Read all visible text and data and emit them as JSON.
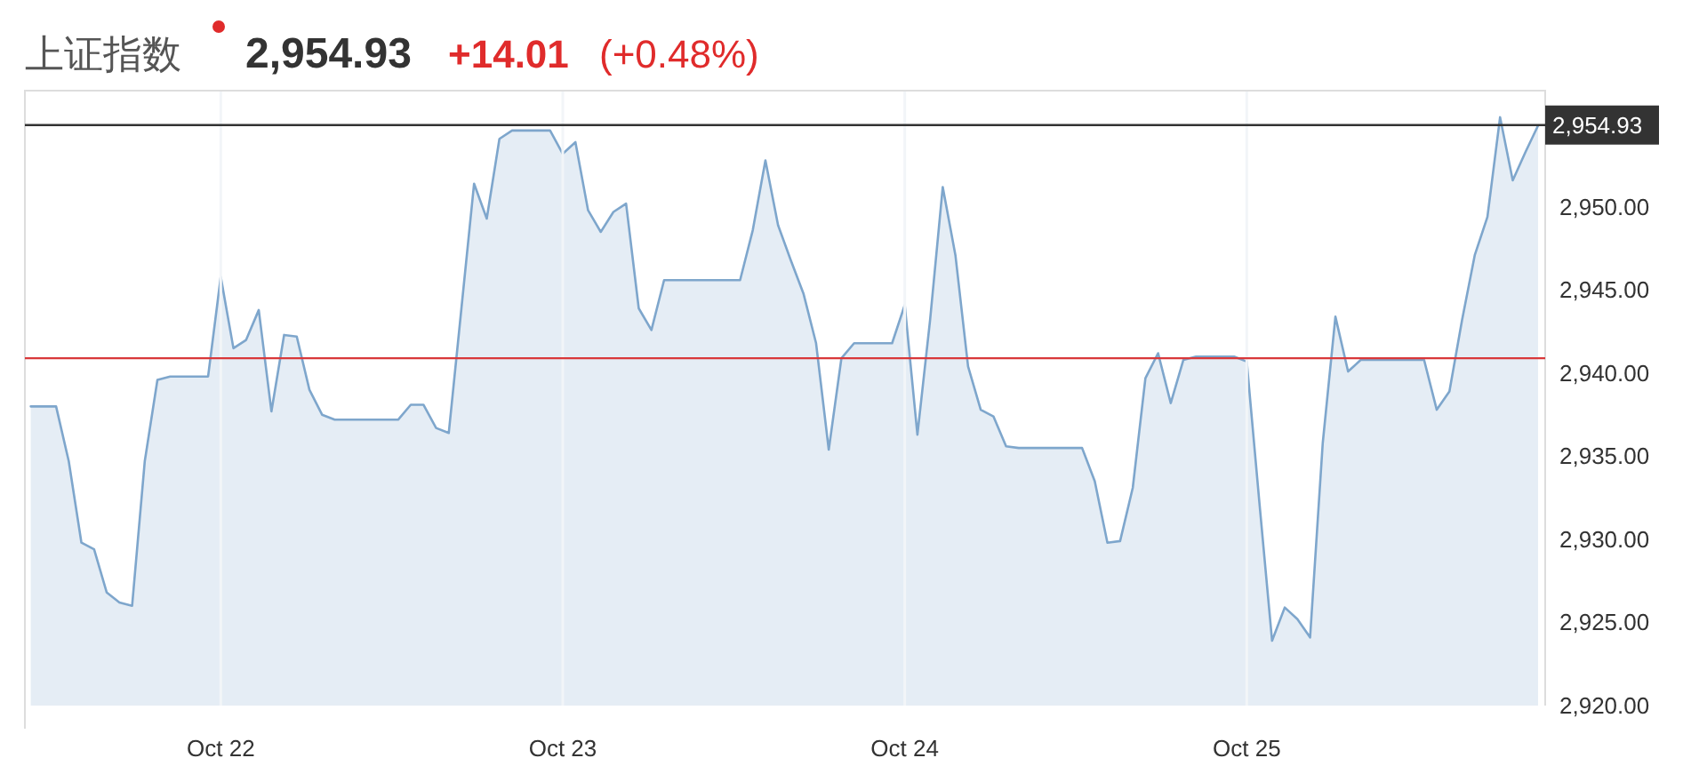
{
  "chart_data": {
    "type": "area",
    "title": "上证指数",
    "annotations": [
      "2,954.93",
      "+14.01",
      "(+0.48%)"
    ],
    "categories": [
      null,
      null,
      null,
      null,
      null,
      null,
      null,
      null,
      null,
      null,
      null,
      null,
      null,
      null,
      null,
      "Oct 22",
      null,
      null,
      null,
      null,
      null,
      null,
      null,
      null,
      null,
      null,
      null,
      null,
      null,
      null,
      null,
      null,
      null,
      null,
      null,
      null,
      null,
      null,
      null,
      null,
      null,
      null,
      "Oct 23",
      null,
      null,
      null,
      null,
      null,
      null,
      null,
      null,
      null,
      null,
      null,
      null,
      null,
      null,
      null,
      null,
      null,
      null,
      null,
      null,
      null,
      null,
      null,
      null,
      null,
      null,
      "Oct 24",
      null,
      null,
      null,
      null,
      null,
      null,
      null,
      null,
      null,
      null,
      null,
      null,
      null,
      null,
      null,
      null,
      null,
      null,
      null,
      null,
      null,
      null,
      null,
      null,
      null,
      null,
      "Oct 25",
      null,
      null,
      null,
      null,
      null,
      null,
      null,
      null,
      null,
      null,
      null,
      null,
      null,
      null,
      null,
      null,
      null,
      null,
      null,
      null,
      null,
      null,
      null
    ],
    "values": [
      2938.0,
      2938.0,
      2938.0,
      2934.7,
      2929.8,
      2929.4,
      2926.8,
      2926.2,
      2926.0,
      2934.7,
      2939.6,
      2939.8,
      2939.8,
      2939.8,
      2939.8,
      2945.8,
      2941.5,
      2942.0,
      2943.8,
      2937.7,
      2942.3,
      2942.2,
      2939.0,
      2937.5,
      2937.2,
      2937.2,
      2937.2,
      2937.2,
      2937.2,
      2937.2,
      2938.1,
      2938.1,
      2936.7,
      2936.4,
      2943.9,
      2951.4,
      2949.3,
      2954.1,
      2954.6,
      2954.6,
      2954.6,
      2954.6,
      2953.2,
      2953.9,
      2949.8,
      2948.5,
      2949.7,
      2950.2,
      2943.9,
      2942.6,
      2945.6,
      2945.6,
      2945.6,
      2945.6,
      2945.6,
      2945.6,
      2945.6,
      2948.6,
      2952.8,
      2948.9,
      2946.8,
      2944.8,
      2941.8,
      2935.4,
      2940.9,
      2941.8,
      2941.8,
      2941.8,
      2941.8,
      2944.1,
      2936.3,
      2943.2,
      2951.2,
      2947.1,
      2940.4,
      2937.8,
      2937.4,
      2935.6,
      2935.5,
      2935.5,
      2935.5,
      2935.5,
      2935.5,
      2935.5,
      2933.5,
      2929.8,
      2929.9,
      2933.1,
      2939.7,
      2941.2,
      2938.2,
      2940.8,
      2941.0,
      2941.0,
      2941.0,
      2941.0,
      2940.7,
      2932.2,
      2923.9,
      2925.9,
      2925.2,
      2924.1,
      2935.8,
      2943.4,
      2940.1,
      2940.8,
      2940.8,
      2940.8,
      2940.8,
      2940.8,
      2940.8,
      2937.8,
      2938.9,
      2943.2,
      2947.1,
      2949.4,
      2955.4,
      2951.6,
      2953.3,
      2954.9
    ],
    "color": "#7ea6cc",
    "ylim": [
      2920,
      2957
    ],
    "yticks": [
      {
        "value": 2920,
        "label": "2,920.00"
      },
      {
        "value": 2925,
        "label": "2,925.00"
      },
      {
        "value": 2930,
        "label": "2,930.00"
      },
      {
        "value": 2935,
        "label": "2,935.00"
      },
      {
        "value": 2940,
        "label": "2,940.00"
      },
      {
        "value": 2945,
        "label": "2,945.00"
      },
      {
        "value": 2950,
        "label": "2,950.00"
      }
    ],
    "grid": "x",
    "ref_lines": [
      {
        "axis": "y",
        "value": 2954.93,
        "label": "2,954.93",
        "color": "#333333"
      },
      {
        "axis": "y",
        "value": 2940.9,
        "color": "#d9383a"
      }
    ]
  }
}
